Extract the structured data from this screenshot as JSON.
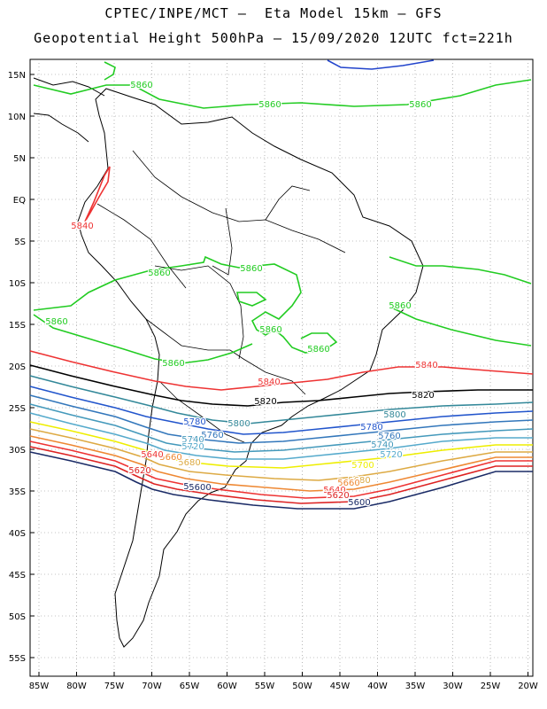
{
  "title_line1": "CPTEC/INPE/MCT –  Eta Model 15km – GFS",
  "title_line2": "Geopotential Height 500hPa – 15/09/2020 12UTC fct=221h",
  "lat_labels": [
    "15N",
    "10N",
    "5N",
    "EQ",
    "5S",
    "10S",
    "15S",
    "20S",
    "25S",
    "30S",
    "35S",
    "40S",
    "45S",
    "50S",
    "55S"
  ],
  "lon_labels": [
    "85W",
    "80W",
    "75W",
    "70W",
    "65W",
    "60W",
    "55W",
    "50W",
    "45W",
    "40W",
    "35W",
    "30W",
    "25W",
    "20W"
  ],
  "colors": {
    "c5860": "#22cc22",
    "c5840": "#ee3333",
    "c5820": "#000000",
    "c5800": "#338899",
    "c5780": "#2255cc",
    "c5760": "#3377bb",
    "c5740": "#4499bb",
    "c5720": "#55aacc",
    "c5700": "#eeee00",
    "c5680": "#ddaa44",
    "c5660": "#ee8833",
    "c5640": "#ee3333",
    "c5620": "#dd2222",
    "c5600": "#1a2b66",
    "c5880": "#2244cc"
  },
  "contour_labels": [
    {
      "text": "5860",
      "color": "c5860"
    },
    {
      "text": "5860",
      "color": "c5860"
    },
    {
      "text": "5860",
      "color": "c5860"
    },
    {
      "text": "5860",
      "color": "c5860"
    },
    {
      "text": "5860",
      "color": "c5860"
    },
    {
      "text": "5860",
      "color": "c5860"
    },
    {
      "text": "5860",
      "color": "c5860"
    },
    {
      "text": "5860",
      "color": "c5860"
    },
    {
      "text": "5860",
      "color": "c5860"
    },
    {
      "text": "5860",
      "color": "c5860"
    },
    {
      "text": "5840",
      "color": "c5840"
    },
    {
      "text": "5840",
      "color": "c5840"
    },
    {
      "text": "5840",
      "color": "c5840"
    },
    {
      "text": "5820",
      "color": "c5820"
    },
    {
      "text": "5820",
      "color": "c5820"
    },
    {
      "text": "5800",
      "color": "c5800"
    },
    {
      "text": "5800",
      "color": "c5800"
    },
    {
      "text": "5780",
      "color": "c5780"
    },
    {
      "text": "5780",
      "color": "c5780"
    },
    {
      "text": "5760",
      "color": "c5760"
    },
    {
      "text": "5760",
      "color": "c5760"
    },
    {
      "text": "5740",
      "color": "c5740"
    },
    {
      "text": "5740",
      "color": "c5740"
    },
    {
      "text": "5720",
      "color": "c5720"
    },
    {
      "text": "5720",
      "color": "c5720"
    },
    {
      "text": "5700",
      "color": "c5700"
    },
    {
      "text": "5680",
      "color": "c5680"
    },
    {
      "text": "5680",
      "color": "c5680"
    },
    {
      "text": "5660",
      "color": "c5660"
    },
    {
      "text": "5660",
      "color": "c5660"
    },
    {
      "text": "5640",
      "color": "c5640"
    },
    {
      "text": "5640",
      "color": "c5640"
    },
    {
      "text": "5620",
      "color": "c5620"
    },
    {
      "text": "5620",
      "color": "c5620"
    },
    {
      "text": "5600",
      "color": "c5600"
    },
    {
      "text": "5600",
      "color": "c5600"
    },
    {
      "text": "5600",
      "color": "c5600"
    }
  ]
}
